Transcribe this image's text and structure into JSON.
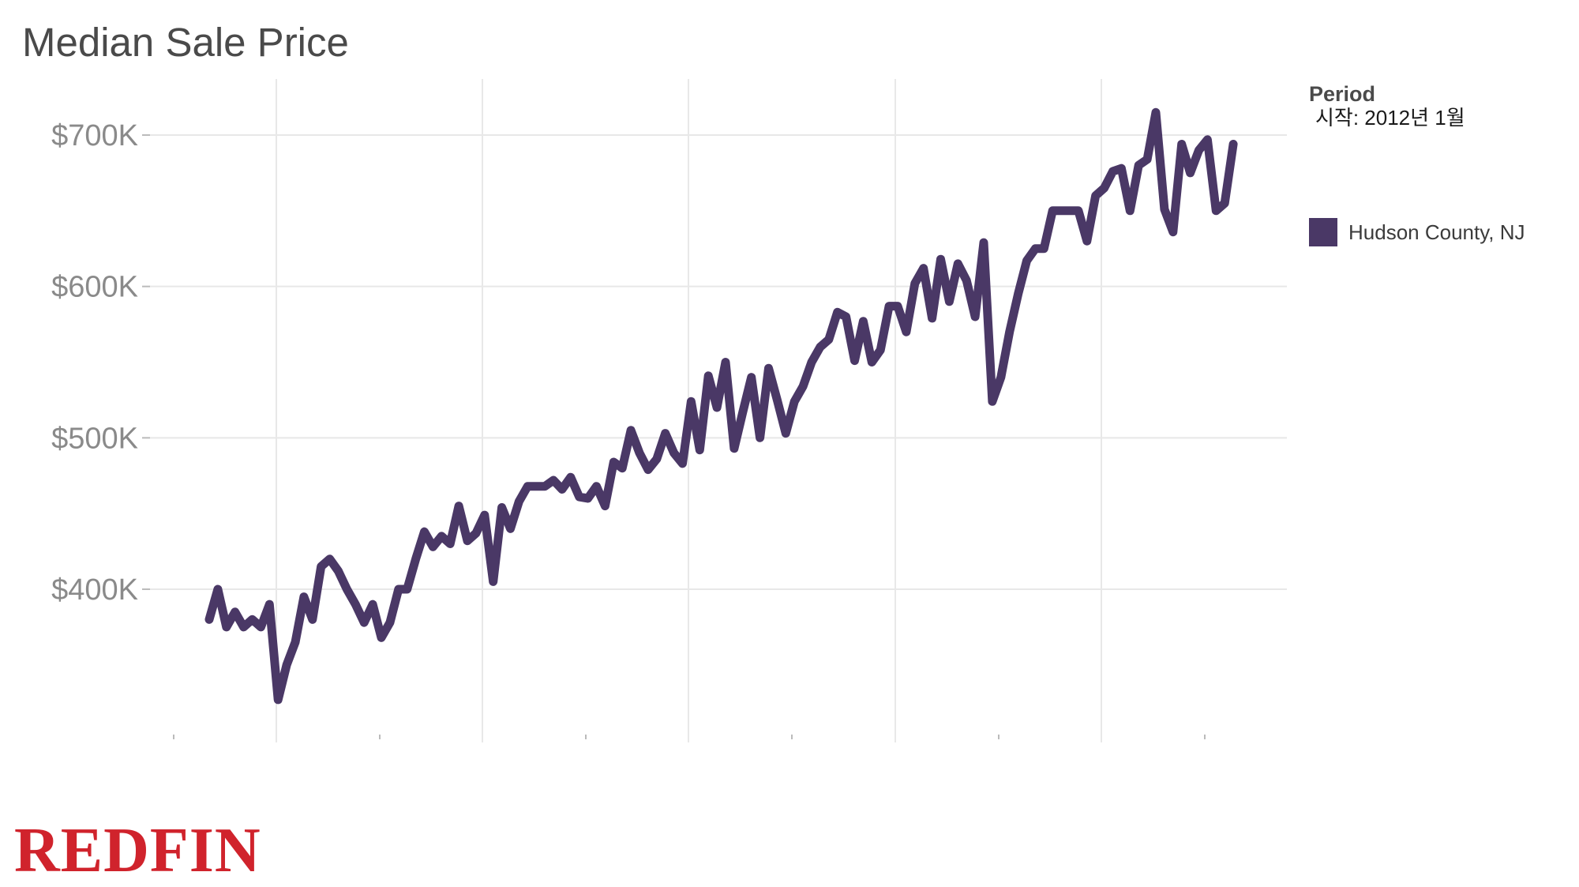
{
  "title": "Median Sale Price",
  "legend": {
    "title": "Period",
    "subtitle": "시작: 2012년 1월",
    "item_label": "Hudson County, NJ"
  },
  "logo_text": "REDFIN",
  "colors": {
    "series": "#4a3866",
    "grid": "#e8e8e8",
    "tick_text": "#8a8a8a",
    "logo": "#d0232c"
  },
  "chart_data": {
    "type": "line",
    "title": "Median Sale Price",
    "start": "2012년 1월",
    "frequency": "monthly",
    "ylim": [
      300000,
      720000
    ],
    "y_ticks": [
      400000,
      500000,
      600000,
      700000
    ],
    "y_tick_labels": [
      "$400K",
      "$500K",
      "$600K",
      "$700K"
    ],
    "grid": true,
    "legend_position": "right",
    "series": [
      {
        "name": "Hudson County, NJ",
        "color": "#4a3866",
        "values": [
          380000,
          400000,
          375000,
          385000,
          375000,
          380000,
          375000,
          390000,
          327000,
          350000,
          365000,
          395000,
          380000,
          415000,
          420000,
          412000,
          400000,
          390000,
          378000,
          390000,
          368000,
          378000,
          400000,
          400000,
          420000,
          438000,
          428000,
          435000,
          430000,
          455000,
          432000,
          437000,
          449000,
          405000,
          454000,
          440000,
          458000,
          468000,
          468000,
          468000,
          472000,
          466000,
          474000,
          461000,
          460000,
          468000,
          455000,
          484000,
          480000,
          505000,
          490000,
          479000,
          486000,
          503000,
          490000,
          483000,
          524000,
          492000,
          541000,
          520000,
          550000,
          493000,
          517000,
          540000,
          500000,
          546000,
          525000,
          503000,
          524000,
          534000,
          550000,
          560000,
          565000,
          583000,
          580000,
          551000,
          577000,
          550000,
          558000,
          587000,
          587000,
          570000,
          602000,
          612000,
          579000,
          618000,
          590000,
          615000,
          604000,
          580000,
          629000,
          524000,
          540000,
          570000,
          595000,
          617000,
          625000,
          625000,
          650000,
          650000,
          650000,
          650000,
          630000,
          660000,
          665000,
          676000,
          678000,
          650000,
          680000,
          684000,
          715000,
          651000,
          636000,
          694000,
          675000,
          690000,
          697000,
          650000,
          655000,
          694000
        ]
      }
    ]
  }
}
